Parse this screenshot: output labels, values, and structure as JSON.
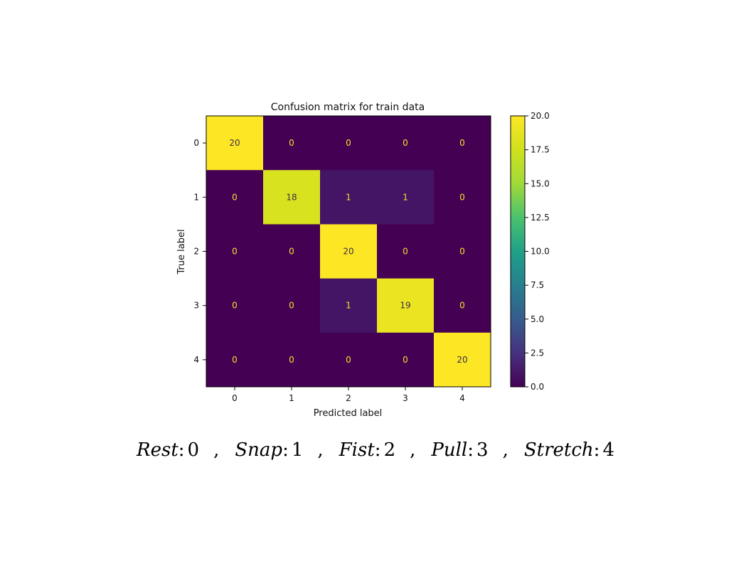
{
  "chart_data": {
    "type": "heatmap",
    "title": "Confusion matrix for train data",
    "xlabel": "Predicted label",
    "ylabel": "True label",
    "x_tick_labels": [
      "0",
      "1",
      "2",
      "3",
      "4"
    ],
    "y_tick_labels": [
      "0",
      "1",
      "2",
      "3",
      "4"
    ],
    "matrix": [
      [
        20,
        0,
        0,
        0,
        0
      ],
      [
        0,
        18,
        1,
        1,
        0
      ],
      [
        0,
        0,
        20,
        0,
        0
      ],
      [
        0,
        0,
        1,
        19,
        0
      ],
      [
        0,
        0,
        0,
        0,
        20
      ]
    ],
    "colormap": "viridis",
    "colorbar": {
      "range": [
        0,
        20
      ],
      "ticks": [
        "0.0",
        "2.5",
        "5.0",
        "7.5",
        "10.0",
        "12.5",
        "15.0",
        "17.5",
        "20.0"
      ]
    },
    "grid": false
  },
  "caption": {
    "items": [
      {
        "name": "Rest",
        "value": "0"
      },
      {
        "name": "Snap",
        "value": "1"
      },
      {
        "name": "Fist",
        "value": "2"
      },
      {
        "name": "Pull",
        "value": "3"
      },
      {
        "name": "Stretch",
        "value": "4"
      }
    ],
    "separator": ","
  }
}
